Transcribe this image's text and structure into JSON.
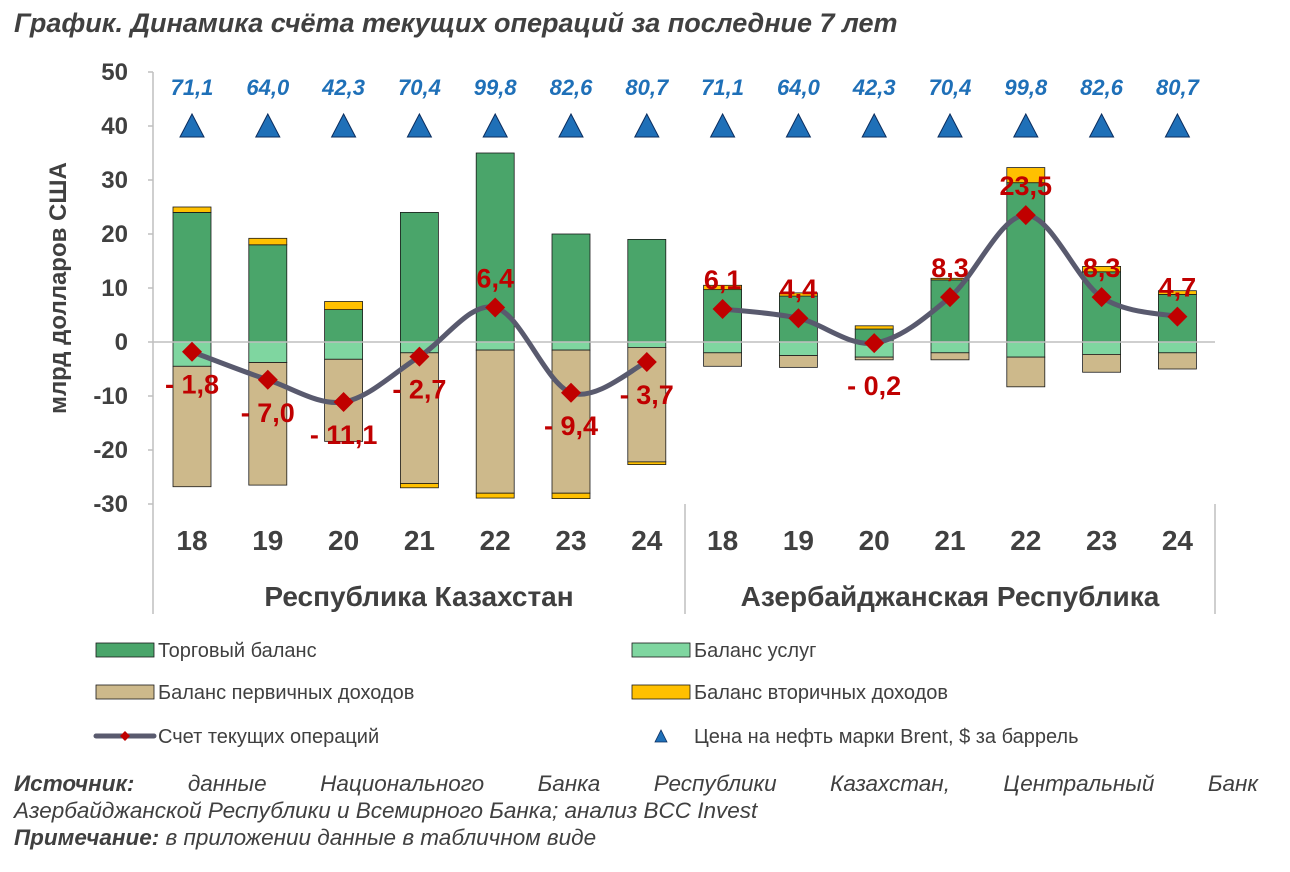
{
  "title": "График. Динамика счёта текущих операций за последние 7 лет",
  "colors": {
    "trade": "#4aa56a",
    "services": "#7fd6a0",
    "primary": "#cdb98b",
    "secondary": "#ffc000",
    "line": "#595a6e",
    "marker": "#c00000",
    "triangle": "#1f70b8",
    "oil_label": "#1f70b8"
  },
  "chart_data": {
    "type": "bar",
    "stacked": true,
    "ylabel": "млрд долларов США",
    "ylim": [
      -30,
      50
    ],
    "yticks": [
      "50",
      "40",
      "30",
      "20",
      "10",
      "0",
      "-10",
      "-20",
      "-30"
    ],
    "groups": [
      {
        "name": "Республика Казахстан",
        "categories": [
          "18",
          "19",
          "20",
          "21",
          "22",
          "23",
          "24"
        ],
        "trade": [
          24,
          18,
          6,
          24,
          35,
          20,
          19
        ],
        "services": [
          -4.5,
          -3.8,
          -3.2,
          -2,
          -1.5,
          -1.5,
          -1
        ],
        "primary": [
          -22.3,
          -22.7,
          -15.2,
          -24.2,
          -26.5,
          -26.5,
          -21.2
        ],
        "secondary": [
          1,
          1.2,
          1.5,
          -0.8,
          -0.9,
          -1,
          -0.5
        ],
        "current_account": [
          -1.8,
          -7.0,
          -11.1,
          -2.7,
          6.4,
          -9.4,
          -3.7
        ],
        "current_account_labels": [
          "- 1,8",
          "- 7,0",
          "- 11,1",
          "- 2,7",
          "6,4",
          "- 9,4",
          "- 3,7"
        ],
        "oil_labels": [
          "71,1",
          "64,0",
          "42,3",
          "70,4",
          "99,8",
          "82,6",
          "80,7"
        ]
      },
      {
        "name": "Азербайджанская Республика",
        "categories": [
          "18",
          "19",
          "20",
          "21",
          "22",
          "23",
          "24"
        ],
        "trade": [
          9.7,
          8.5,
          2.4,
          11.5,
          29.5,
          13,
          8.8
        ],
        "services": [
          -2,
          -2.5,
          -2.8,
          -2,
          -2.8,
          -2.3,
          -2
        ],
        "primary": [
          -2.5,
          -2.2,
          -0.5,
          -1.3,
          -5.5,
          -3.3,
          -3
        ],
        "secondary": [
          0.8,
          0.6,
          0.6,
          0.3,
          2.8,
          1,
          0.7
        ],
        "current_account": [
          6.1,
          4.4,
          -0.2,
          8.3,
          23.5,
          8.3,
          4.7
        ],
        "current_account_labels": [
          "6,1",
          "4,4",
          "- 0,2",
          "8,3",
          "23,5",
          "8,3",
          "4,7"
        ],
        "oil_labels": [
          "71,1",
          "64,0",
          "42,3",
          "70,4",
          "99,8",
          "82,6",
          "80,7"
        ]
      }
    ],
    "oil_marker_level": 40,
    "legend": [
      {
        "key": "trade",
        "label": "Торговый баланс",
        "kind": "bar"
      },
      {
        "key": "services",
        "label": "Баланс услуг",
        "kind": "bar"
      },
      {
        "key": "primary",
        "label": "Баланс первичных доходов",
        "kind": "bar"
      },
      {
        "key": "secondary",
        "label": "Баланс вторичных доходов",
        "kind": "bar"
      },
      {
        "key": "line",
        "label": "Счет текущих операций",
        "kind": "line"
      },
      {
        "key": "triangle",
        "label": "Цена на нефть марки Brent, $ за баррель",
        "kind": "triangle"
      }
    ],
    "legend_position": "bottom"
  },
  "footer": {
    "source_label": "Источник:",
    "source_text": "данные Национального Банка Республики Казахстан, Центральный Банк",
    "source_text2": "Азербайджанской Республики и Всемирного Банка; анализ BCC Invest",
    "note_label": "Примечание:",
    "note_text": "в приложении данные в табличном виде"
  }
}
